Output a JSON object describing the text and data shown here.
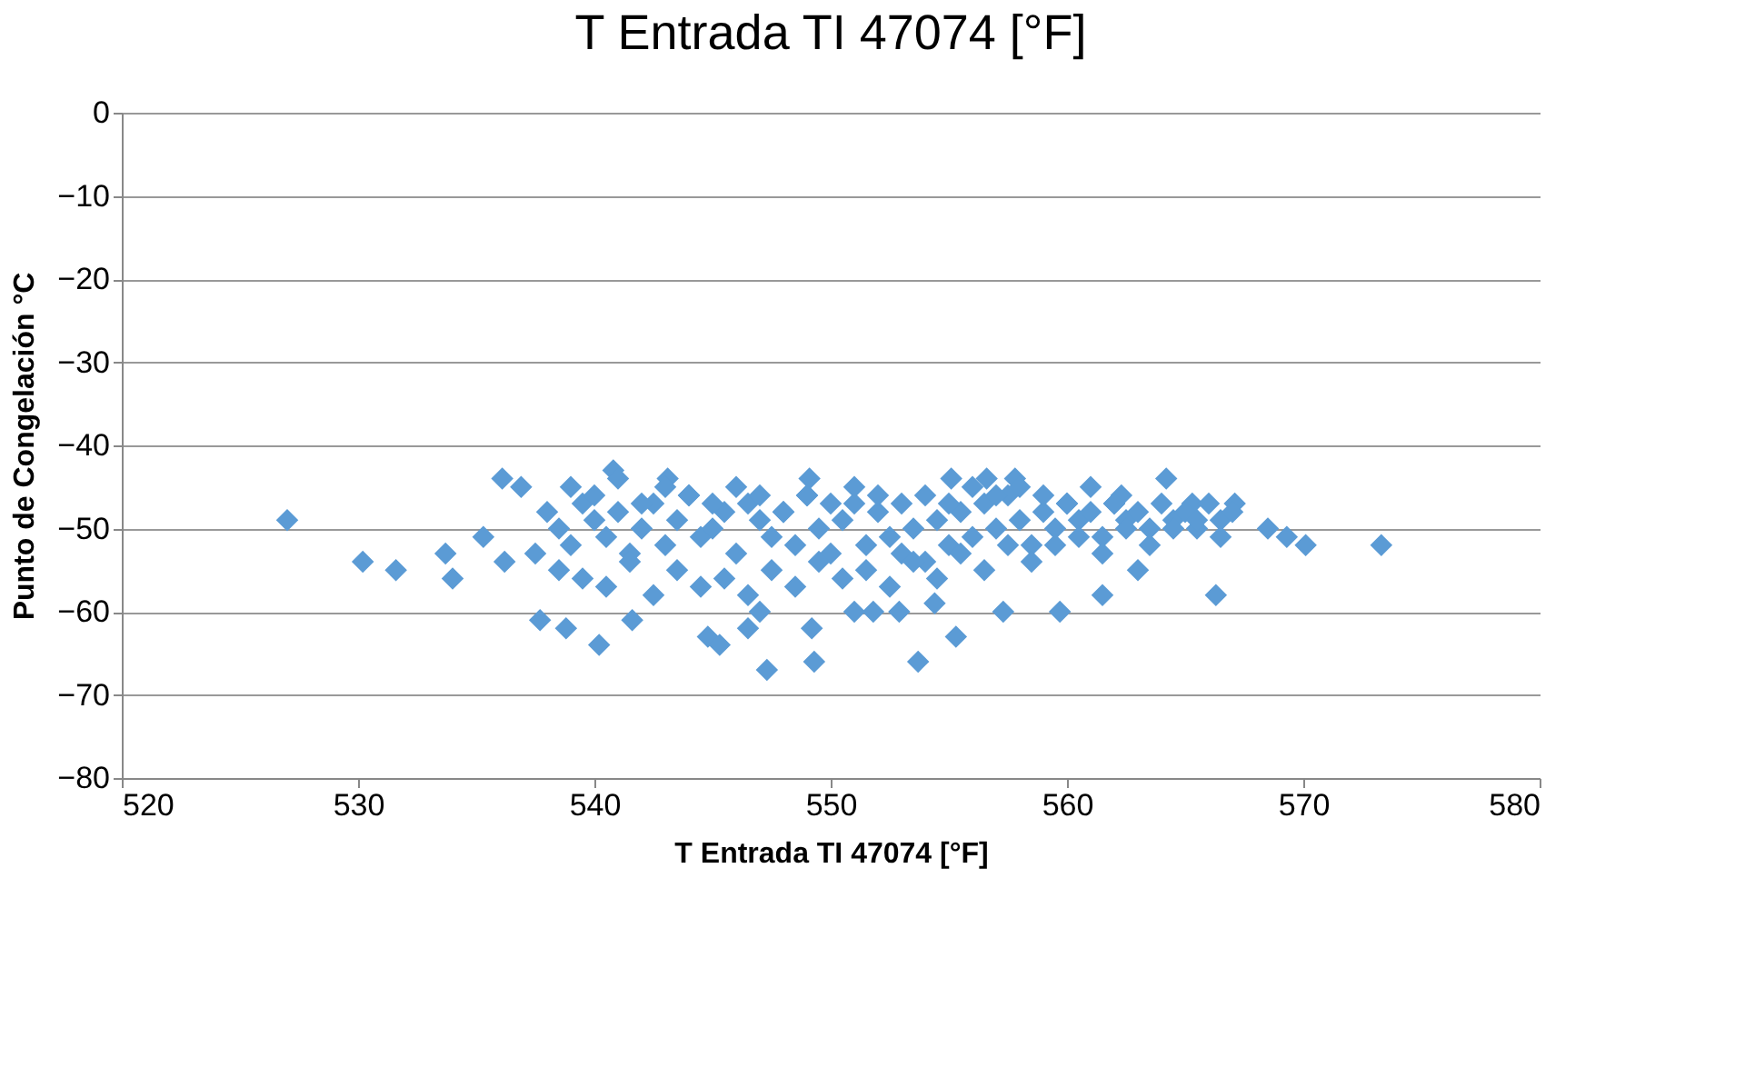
{
  "chart_data": {
    "type": "scatter",
    "title": "T Entrada          TI 47074          [°F]",
    "xlabel": "T Entrada          TI 47074          [°F]",
    "ylabel": "Punto de Congelación °C",
    "xlim": [
      520,
      580
    ],
    "xticks": [
      520,
      530,
      540,
      550,
      560,
      570,
      580
    ],
    "ylim": [
      -80,
      0
    ],
    "yticks": [
      -80,
      -70,
      -60,
      -50,
      -40,
      -30,
      -20,
      -10,
      0
    ],
    "grid": "y",
    "marker": "diamond",
    "series": [
      {
        "color": "#5b9bd5",
        "x": [
          527,
          530.2,
          531.6,
          533.7,
          534,
          535.3,
          536.2,
          536.1,
          536.9,
          537.5,
          537.7,
          538.8,
          540.2,
          540.8,
          541.6,
          543.1,
          544.8,
          545.3,
          546.5,
          547.3,
          547,
          549.1,
          549.2,
          549.3,
          551,
          551.8,
          552.9,
          553.7,
          555.3,
          554.4,
          555.1,
          556.6,
          557.3,
          557.8,
          559.7,
          562.3,
          564.2,
          566.3,
          569.3,
          570.1,
          573.3,
          568.5,
          567.1,
          565.3,
          561.5,
          563,
          538,
          538.5,
          539,
          539.5,
          540,
          540.5,
          541,
          541.5,
          542,
          542.5,
          543,
          543.5,
          544,
          544.5,
          545,
          545.5,
          546,
          546.5,
          547,
          547.5,
          548,
          548.5,
          549,
          549.5,
          550,
          550.5,
          551,
          551.5,
          552,
          552.5,
          553,
          553.5,
          554,
          554.5,
          555,
          555.5,
          556,
          556.5,
          557,
          557.5,
          558,
          558.5,
          559,
          559.5,
          560,
          560.5,
          561,
          561.5,
          562,
          562.5,
          563,
          563.5,
          564,
          564.5,
          565,
          565.5,
          566,
          566.5,
          567,
          538.5,
          539.5,
          540.5,
          541.5,
          542.5,
          543.5,
          544.5,
          545.5,
          546.5,
          547.5,
          548.5,
          549.5,
          550.5,
          551.5,
          552.5,
          553.5,
          554.5,
          555.5,
          556.5,
          557.5,
          558.5,
          559.5,
          560.5,
          561.5,
          562.5,
          563.5,
          564.5,
          565.5,
          566.5,
          539,
          540,
          541,
          542,
          543,
          544,
          545,
          546,
          547,
          548,
          549,
          550,
          551,
          552,
          553,
          554,
          555,
          556,
          557,
          558,
          559,
          560,
          561,
          562
        ],
        "values": [
          -49,
          -54,
          -55,
          -53,
          -56,
          -51,
          -54,
          -44,
          -45,
          -53,
          -61,
          -62,
          -64,
          -43,
          -61,
          -44,
          -63,
          -64,
          -62,
          -67,
          -60,
          -44,
          -62,
          -66,
          -60,
          -60,
          -60,
          -66,
          -63,
          -59,
          -44,
          -44,
          -60,
          -44,
          -60,
          -46,
          -44,
          -58,
          -51,
          -52,
          -52,
          -50,
          -47,
          -47,
          -58,
          -55,
          -48,
          -50,
          -52,
          -47,
          -49,
          -51,
          -48,
          -53,
          -50,
          -47,
          -52,
          -49,
          -46,
          -51,
          -50,
          -48,
          -53,
          -47,
          -49,
          -51,
          -48,
          -52,
          -46,
          -50,
          -53,
          -49,
          -47,
          -52,
          -48,
          -51,
          -53,
          -50,
          -54,
          -49,
          -52,
          -48,
          -51,
          -47,
          -50,
          -46,
          -49,
          -52,
          -48,
          -50,
          -47,
          -49,
          -48,
          -51,
          -47,
          -49,
          -48,
          -50,
          -47,
          -49,
          -48,
          -50,
          -47,
          -49,
          -48,
          -55,
          -56,
          -57,
          -54,
          -58,
          -55,
          -57,
          -56,
          -58,
          -55,
          -57,
          -54,
          -56,
          -55,
          -57,
          -54,
          -56,
          -53,
          -55,
          -52,
          -54,
          -52,
          -51,
          -53,
          -50,
          -52,
          -50,
          -49,
          -51,
          -45,
          -46,
          -44,
          -47,
          -45,
          -46,
          -47,
          -45,
          -46,
          -48,
          -46,
          -47,
          -45,
          -46,
          -47,
          -46,
          -47,
          -45,
          -46,
          -45,
          -46,
          -47,
          -45,
          -47
        ]
      }
    ]
  }
}
